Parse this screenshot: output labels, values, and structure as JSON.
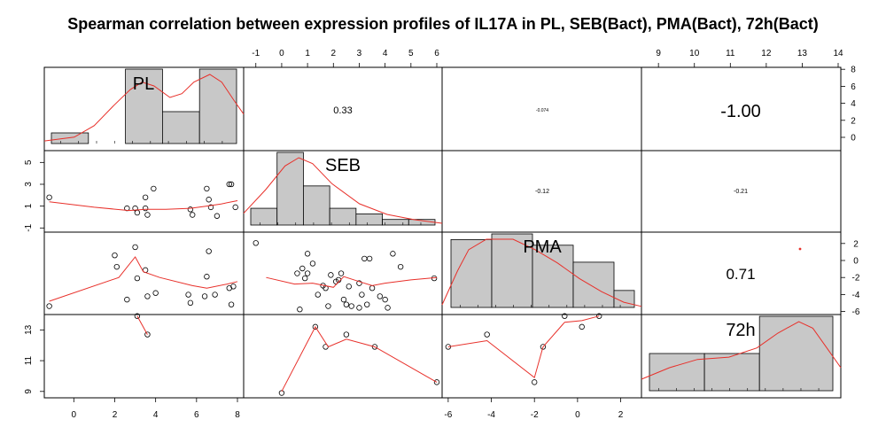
{
  "chart_data": {
    "type": "scatter-matrix",
    "title": "Spearman correlation between expression profiles of IL17A in PL, SEB(Bact), PMA(Bact), 72h(Bact)",
    "variables": [
      "PL",
      "SEB",
      "PMA",
      "72h"
    ],
    "axes": {
      "PL": {
        "range": [
          -1.4,
          8.0
        ],
        "ticks": [
          0,
          2,
          4,
          6,
          8
        ]
      },
      "SEB": {
        "range": [
          -1.3,
          6.0
        ],
        "ticks": [
          -1,
          0,
          1,
          2,
          3,
          4,
          5,
          6
        ],
        "left_ticks": [
          -1,
          1,
          3,
          5
        ]
      },
      "PMA": {
        "range": [
          -6.2,
          2.8
        ],
        "ticks": [
          -6,
          -4,
          -2,
          0,
          2
        ],
        "right_ticks": [
          -6,
          -4,
          -2,
          0,
          2
        ]
      },
      "72h": {
        "range": [
          8.7,
          14.0
        ],
        "ticks": [
          9,
          10,
          11,
          12,
          13,
          14
        ],
        "left_ticks": [
          9,
          11,
          13
        ]
      },
      "top_hist_density": {
        "range": [
          -1.5,
          8.5
        ],
        "ticks": [
          0,
          2,
          4,
          6,
          8
        ]
      }
    },
    "correlations": [
      {
        "pair": [
          "PL",
          "SEB"
        ],
        "label": "0.33"
      },
      {
        "pair": [
          "PL",
          "PMA"
        ],
        "label": "-0.074"
      },
      {
        "pair": [
          "PL",
          "72h"
        ],
        "label": "-1.00"
      },
      {
        "pair": [
          "SEB",
          "PMA"
        ],
        "label": "-0.12"
      },
      {
        "pair": [
          "SEB",
          "72h"
        ],
        "label": "-0.21"
      },
      {
        "pair": [
          "PMA",
          "72h"
        ],
        "label": "0.71"
      }
    ],
    "histograms": {
      "PL": {
        "breaks": [
          -1,
          1,
          3,
          5,
          7,
          9
        ],
        "counts": [
          1,
          0,
          7,
          3,
          7
        ]
      },
      "SEB": {
        "breaks": [
          -1,
          0,
          1,
          2,
          3,
          4,
          5,
          6
        ],
        "counts": [
          3,
          13,
          7,
          3,
          2,
          1,
          1
        ]
      },
      "PMA": {
        "breaks": [
          -6,
          -4,
          -2,
          0,
          2,
          3
        ],
        "counts": [
          12,
          13,
          11,
          8,
          3
        ]
      },
      "72h": {
        "breaks": [
          9,
          10.5,
          12,
          14
        ],
        "counts": [
          1,
          1,
          2
        ]
      }
    },
    "scatter": {
      "SEB_vs_PL": [
        [
          -1.2,
          1.8
        ],
        [
          2.6,
          0.8
        ],
        [
          3.1,
          0.4
        ],
        [
          3.0,
          0.8
        ],
        [
          3.6,
          0.2
        ],
        [
          3.5,
          1.8
        ],
        [
          3.9,
          2.6
        ],
        [
          3.5,
          0.8
        ],
        [
          5.7,
          0.7
        ],
        [
          5.8,
          0.2
        ],
        [
          6.5,
          2.6
        ],
        [
          6.6,
          1.6
        ],
        [
          6.7,
          0.9
        ],
        [
          7.0,
          0.1
        ],
        [
          7.6,
          3.0
        ],
        [
          7.7,
          3.0
        ],
        [
          7.9,
          0.9
        ]
      ],
      "PMA_vs_PL": [
        [
          -1.2,
          -5.8
        ],
        [
          2.0,
          0.4
        ],
        [
          2.1,
          -1.0
        ],
        [
          3.0,
          1.4
        ],
        [
          3.1,
          -2.4
        ],
        [
          3.5,
          -1.4
        ],
        [
          2.6,
          -5.0
        ],
        [
          3.6,
          -4.6
        ],
        [
          4.0,
          -4.2
        ],
        [
          5.6,
          -4.4
        ],
        [
          5.7,
          -5.4
        ],
        [
          6.4,
          -4.6
        ],
        [
          6.5,
          -2.2
        ],
        [
          6.6,
          0.9
        ],
        [
          6.9,
          -4.4
        ],
        [
          7.6,
          -3.6
        ],
        [
          7.7,
          -5.6
        ],
        [
          7.8,
          -3.4
        ]
      ],
      "PMA_vs_SEB": [
        [
          -1.0,
          1.9
        ],
        [
          0.6,
          -1.8
        ],
        [
          0.8,
          -1.2
        ],
        [
          0.9,
          -2.4
        ],
        [
          1.0,
          0.6
        ],
        [
          1.0,
          -1.8
        ],
        [
          1.2,
          -0.6
        ],
        [
          1.4,
          -4.4
        ],
        [
          1.6,
          -3.3
        ],
        [
          1.7,
          -3.6
        ],
        [
          1.9,
          -2.0
        ],
        [
          2.1,
          -2.8
        ],
        [
          2.2,
          -2.6
        ],
        [
          2.3,
          -1.8
        ],
        [
          2.4,
          -5.0
        ],
        [
          2.5,
          -5.6
        ],
        [
          2.6,
          -3.4
        ],
        [
          3.0,
          -6.0
        ],
        [
          3.0,
          -3.0
        ],
        [
          3.1,
          -4.4
        ],
        [
          3.2,
          0.0
        ],
        [
          3.3,
          -5.6
        ],
        [
          3.5,
          -3.6
        ],
        [
          3.4,
          0.0
        ],
        [
          4.0,
          -5.0
        ],
        [
          3.8,
          -4.6
        ],
        [
          4.1,
          -6.0
        ],
        [
          2.7,
          -5.8
        ],
        [
          0.7,
          -6.2
        ],
        [
          1.8,
          -5.8
        ],
        [
          4.3,
          0.6
        ],
        [
          4.6,
          -1.0
        ],
        [
          5.9,
          -2.4
        ]
      ],
      "72h_vs_PL": [
        [
          3.1,
          13.9
        ],
        [
          3.6,
          12.7
        ]
      ],
      "72h_vs_SEB": [
        [
          0.0,
          8.9
        ],
        [
          1.3,
          13.2
        ],
        [
          1.7,
          11.9
        ],
        [
          2.5,
          12.7
        ],
        [
          3.6,
          11.9
        ],
        [
          6.0,
          9.6
        ]
      ],
      "72h_vs_PMA": [
        [
          -6.0,
          11.9
        ],
        [
          -4.2,
          12.7
        ],
        [
          -2.0,
          9.6
        ],
        [
          -1.6,
          11.9
        ],
        [
          -0.6,
          13.9
        ],
        [
          0.2,
          13.2
        ],
        [
          1.0,
          13.9
        ]
      ]
    },
    "smoothers": {
      "SEB_vs_PL": [
        [
          -1.2,
          1.4
        ],
        [
          1.0,
          0.9
        ],
        [
          2.7,
          0.6
        ],
        [
          3.5,
          0.7
        ],
        [
          4.5,
          0.7
        ],
        [
          5.7,
          0.8
        ],
        [
          6.5,
          1.0
        ],
        [
          7.2,
          1.2
        ],
        [
          8.0,
          1.5
        ]
      ],
      "PMA_vs_PL": [
        [
          -1.2,
          -5.2
        ],
        [
          2.2,
          -2.3
        ],
        [
          3.0,
          0.2
        ],
        [
          3.4,
          -1.6
        ],
        [
          4.2,
          -2.3
        ],
        [
          5.8,
          -3.3
        ],
        [
          6.5,
          -3.6
        ],
        [
          7.5,
          -3.1
        ],
        [
          8.0,
          -2.8
        ]
      ],
      "PMA_vs_SEB": [
        [
          -0.6,
          -2.3
        ],
        [
          0.5,
          -3.1
        ],
        [
          1.2,
          -3.0
        ],
        [
          2.0,
          -3.5
        ],
        [
          2.4,
          -2.2
        ],
        [
          3.0,
          -2.8
        ],
        [
          3.5,
          -3.3
        ],
        [
          4.0,
          -3.0
        ],
        [
          5.0,
          -2.6
        ],
        [
          6.0,
          -2.3
        ]
      ],
      "72h_vs_PL": [
        [
          3.1,
          13.9
        ],
        [
          3.6,
          12.7
        ]
      ],
      "72h_vs_SEB": [
        [
          0.0,
          9.0
        ],
        [
          1.3,
          13.2
        ],
        [
          1.8,
          11.9
        ],
        [
          2.5,
          12.4
        ],
        [
          3.6,
          11.9
        ],
        [
          6.0,
          9.6
        ]
      ],
      "72h_vs_PMA": [
        [
          -6.0,
          11.9
        ],
        [
          -4.2,
          12.3
        ],
        [
          -2.0,
          9.9
        ],
        [
          -1.6,
          11.9
        ],
        [
          -0.6,
          13.5
        ],
        [
          0.2,
          13.6
        ],
        [
          1.0,
          13.9
        ]
      ]
    },
    "densities": {
      "PL": [
        [
          -1.5,
          0.2
        ],
        [
          0.0,
          0.5
        ],
        [
          1.0,
          1.4
        ],
        [
          2.0,
          3.0
        ],
        [
          2.8,
          4.2
        ],
        [
          3.4,
          4.8
        ],
        [
          4.0,
          4.5
        ],
        [
          4.8,
          3.6
        ],
        [
          5.4,
          3.9
        ],
        [
          6.0,
          4.8
        ],
        [
          6.8,
          5.4
        ],
        [
          7.4,
          4.8
        ],
        [
          8.0,
          3.4
        ],
        [
          8.5,
          2.3
        ]
      ],
      "SEB": [
        [
          -1.2,
          2.0
        ],
        [
          -0.4,
          6.0
        ],
        [
          0.3,
          10.0
        ],
        [
          0.8,
          11.4
        ],
        [
          1.3,
          10.4
        ],
        [
          2.0,
          7.0
        ],
        [
          3.0,
          3.6
        ],
        [
          4.0,
          1.8
        ],
        [
          5.0,
          0.9
        ],
        [
          6.0,
          0.3
        ]
      ],
      "PMA": [
        [
          -6.2,
          0.5
        ],
        [
          -5.5,
          7.0
        ],
        [
          -5.0,
          11.0
        ],
        [
          -4.2,
          13.0
        ],
        [
          -3.0,
          13.0
        ],
        [
          -2.0,
          11.0
        ],
        [
          -1.0,
          8.5
        ],
        [
          0.0,
          5.5
        ],
        [
          1.0,
          3.0
        ],
        [
          2.0,
          1.0
        ],
        [
          2.8,
          0.2
        ]
      ],
      "72h": [
        [
          8.7,
          0.35
        ],
        [
          9.5,
          0.7
        ],
        [
          10.3,
          0.95
        ],
        [
          11.2,
          1.02
        ],
        [
          12.0,
          1.3
        ],
        [
          12.6,
          1.75
        ],
        [
          13.2,
          2.1
        ],
        [
          13.6,
          1.9
        ],
        [
          14.0,
          1.3
        ],
        [
          14.4,
          0.7
        ]
      ]
    },
    "marker": {
      "pair": [
        "PMA",
        "72h"
      ],
      "x": 13.0,
      "y": 1.5
    },
    "colors": {
      "fit": "#e8302a",
      "bar": "#c8c8c8",
      "border": "#000000"
    }
  }
}
